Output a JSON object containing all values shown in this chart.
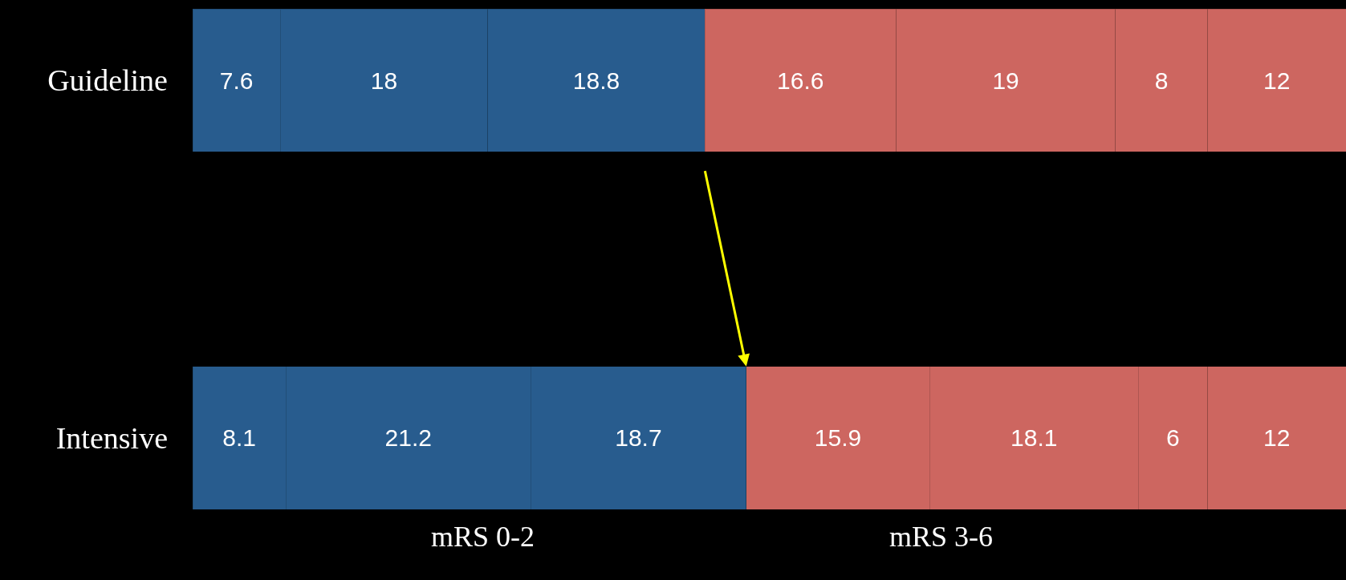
{
  "chart_data": {
    "type": "bar",
    "orientation": "horizontal",
    "stacked": true,
    "categories": [
      "Guideline",
      "Intensive"
    ],
    "series": [
      {
        "color": "#285c8e",
        "values": [
          7.6,
          8.1
        ]
      },
      {
        "color": "#285c8e",
        "values": [
          18,
          21.2
        ]
      },
      {
        "color": "#285c8e",
        "values": [
          18.8,
          18.7
        ]
      },
      {
        "color": "#cd6660",
        "values": [
          16.6,
          15.9
        ]
      },
      {
        "color": "#cd6660",
        "values": [
          19,
          18.1
        ]
      },
      {
        "color": "#cd6660",
        "values": [
          8,
          6
        ]
      },
      {
        "color": "#cd6660",
        "values": [
          12,
          12
        ]
      }
    ],
    "xlim": [
      0,
      100
    ],
    "data_labels": true,
    "tick_labels": "y",
    "grid": false,
    "annotations": [
      "mRS 0-2",
      "mRS 3-6"
    ]
  }
}
